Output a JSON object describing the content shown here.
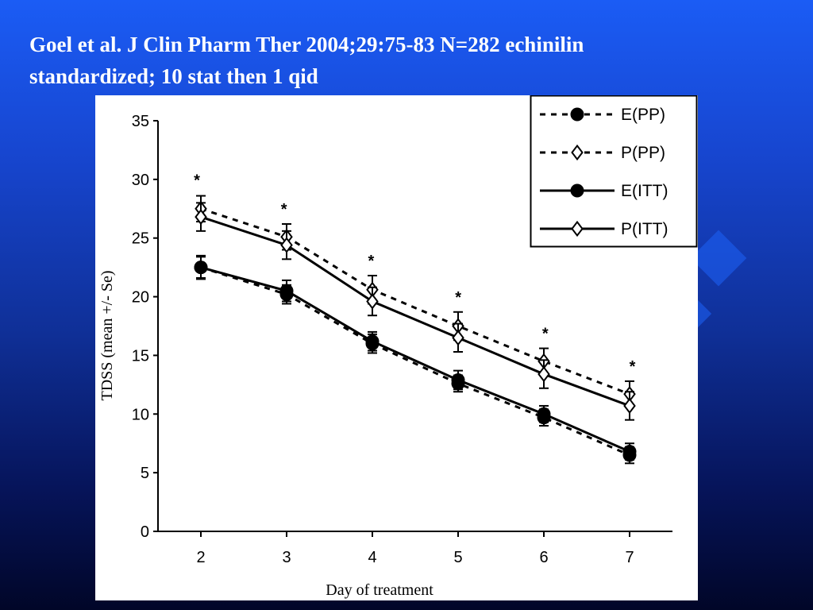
{
  "slide": {
    "title_line1": "Goel et al. J Clin Pharm Ther 2004;29:75-83    N=282 echinilin",
    "title_line2": "standardized; 10 stat then 1 qid"
  },
  "chart_data": {
    "type": "line",
    "title": "",
    "xlabel": "Day of treatment",
    "ylabel": "TDSS (mean +/- Se)",
    "x": [
      2,
      3,
      4,
      5,
      6,
      7
    ],
    "ylim": [
      0,
      35
    ],
    "yticks": [
      0,
      5,
      10,
      15,
      20,
      25,
      30,
      35
    ],
    "grid": false,
    "legend_position": "top-right",
    "significance_marker": "*",
    "series": [
      {
        "name": "E(PP)",
        "marker": "filled-circle",
        "line": "dashed",
        "values": [
          22.5,
          20.2,
          16.0,
          12.6,
          9.7,
          6.5
        ],
        "error": [
          0.9,
          0.8,
          0.8,
          0.7,
          0.7,
          0.7
        ]
      },
      {
        "name": "P(PP)",
        "marker": "open-diamond",
        "line": "dashed",
        "values": [
          27.5,
          25.1,
          20.6,
          17.5,
          14.5,
          11.7
        ],
        "error": [
          1.1,
          1.1,
          1.2,
          1.2,
          1.1,
          1.1
        ]
      },
      {
        "name": "E(ITT)",
        "marker": "filled-circle",
        "line": "solid",
        "values": [
          22.5,
          20.5,
          16.2,
          12.9,
          10.0,
          6.8
        ],
        "error": [
          1.0,
          0.9,
          0.8,
          0.8,
          0.7,
          0.7
        ]
      },
      {
        "name": "P(ITT)",
        "marker": "open-diamond",
        "line": "solid",
        "values": [
          26.8,
          24.4,
          19.6,
          16.5,
          13.4,
          10.7
        ],
        "error": [
          1.2,
          1.2,
          1.2,
          1.2,
          1.2,
          1.2
        ]
      }
    ]
  }
}
